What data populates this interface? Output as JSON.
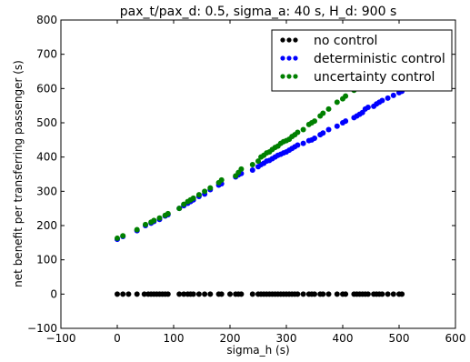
{
  "chart_data": {
    "type": "scatter",
    "title": "pax_t/pax_d: 0.5, sigma_a: 40 s, H_d: 900 s",
    "xlabel": "sigma_h (s)",
    "ylabel": "net benefit per transferring passenger (s)",
    "xlim": [
      -100,
      600
    ],
    "ylim": [
      -100,
      800
    ],
    "x_ticks": [
      -100,
      0,
      100,
      200,
      300,
      400,
      500,
      600
    ],
    "y_ticks": [
      -100,
      0,
      100,
      200,
      300,
      400,
      500,
      600,
      700,
      800
    ],
    "x_tick_labels": [
      "−100",
      "0",
      "100",
      "200",
      "300",
      "400",
      "500",
      "600"
    ],
    "y_tick_labels": [
      "−100",
      "0",
      "100",
      "200",
      "300",
      "400",
      "500",
      "600",
      "700",
      "800"
    ],
    "grid": false,
    "legend_position": "top-right",
    "series": [
      {
        "name": "no control",
        "color": "#000000",
        "points": [
          [
            0,
            0
          ],
          [
            10,
            0
          ],
          [
            20,
            0
          ],
          [
            35,
            0
          ],
          [
            48,
            0
          ],
          [
            55,
            0
          ],
          [
            60,
            0
          ],
          [
            65,
            0
          ],
          [
            70,
            0
          ],
          [
            75,
            0
          ],
          [
            80,
            0
          ],
          [
            85,
            0
          ],
          [
            90,
            0
          ],
          [
            110,
            0
          ],
          [
            118,
            0
          ],
          [
            125,
            0
          ],
          [
            130,
            0
          ],
          [
            135,
            0
          ],
          [
            145,
            0
          ],
          [
            155,
            0
          ],
          [
            165,
            0
          ],
          [
            180,
            0
          ],
          [
            185,
            0
          ],
          [
            200,
            0
          ],
          [
            210,
            0
          ],
          [
            215,
            0
          ],
          [
            220,
            0
          ],
          [
            240,
            0
          ],
          [
            250,
            0
          ],
          [
            255,
            0
          ],
          [
            260,
            0
          ],
          [
            265,
            0
          ],
          [
            270,
            0
          ],
          [
            275,
            0
          ],
          [
            280,
            0
          ],
          [
            285,
            0
          ],
          [
            290,
            0
          ],
          [
            295,
            0
          ],
          [
            300,
            0
          ],
          [
            305,
            0
          ],
          [
            310,
            0
          ],
          [
            315,
            0
          ],
          [
            320,
            0
          ],
          [
            330,
            0
          ],
          [
            340,
            0
          ],
          [
            345,
            0
          ],
          [
            350,
            0
          ],
          [
            360,
            0
          ],
          [
            365,
            0
          ],
          [
            375,
            0
          ],
          [
            390,
            0
          ],
          [
            400,
            0
          ],
          [
            405,
            0
          ],
          [
            420,
            0
          ],
          [
            425,
            0
          ],
          [
            430,
            0
          ],
          [
            435,
            0
          ],
          [
            440,
            0
          ],
          [
            445,
            0
          ],
          [
            455,
            0
          ],
          [
            460,
            0
          ],
          [
            465,
            0
          ],
          [
            470,
            0
          ],
          [
            480,
            0
          ],
          [
            490,
            0
          ],
          [
            500,
            0
          ],
          [
            505,
            0
          ]
        ]
      },
      {
        "name": "deterministic control",
        "color": "#0000ff",
        "points": [
          [
            0,
            160
          ],
          [
            10,
            168
          ],
          [
            35,
            185
          ],
          [
            50,
            200
          ],
          [
            60,
            207
          ],
          [
            65,
            212
          ],
          [
            75,
            218
          ],
          [
            85,
            228
          ],
          [
            90,
            232
          ],
          [
            110,
            250
          ],
          [
            118,
            258
          ],
          [
            125,
            265
          ],
          [
            130,
            270
          ],
          [
            135,
            275
          ],
          [
            145,
            285
          ],
          [
            155,
            292
          ],
          [
            165,
            305
          ],
          [
            180,
            318
          ],
          [
            185,
            322
          ],
          [
            210,
            342
          ],
          [
            215,
            348
          ],
          [
            220,
            352
          ],
          [
            240,
            362
          ],
          [
            250,
            372
          ],
          [
            255,
            378
          ],
          [
            260,
            382
          ],
          [
            265,
            388
          ],
          [
            270,
            390
          ],
          [
            275,
            395
          ],
          [
            280,
            400
          ],
          [
            285,
            405
          ],
          [
            290,
            408
          ],
          [
            295,
            412
          ],
          [
            300,
            415
          ],
          [
            305,
            420
          ],
          [
            310,
            425
          ],
          [
            315,
            430
          ],
          [
            320,
            435
          ],
          [
            330,
            440
          ],
          [
            340,
            448
          ],
          [
            345,
            450
          ],
          [
            350,
            455
          ],
          [
            360,
            465
          ],
          [
            365,
            470
          ],
          [
            375,
            480
          ],
          [
            390,
            490
          ],
          [
            400,
            500
          ],
          [
            405,
            505
          ],
          [
            420,
            515
          ],
          [
            425,
            520
          ],
          [
            430,
            525
          ],
          [
            435,
            530
          ],
          [
            440,
            540
          ],
          [
            445,
            545
          ],
          [
            455,
            548
          ],
          [
            460,
            555
          ],
          [
            465,
            560
          ],
          [
            470,
            565
          ],
          [
            480,
            572
          ],
          [
            490,
            580
          ],
          [
            500,
            588
          ],
          [
            505,
            592
          ]
        ]
      },
      {
        "name": "uncertainty control",
        "color": "#008000",
        "points": [
          [
            0,
            163
          ],
          [
            10,
            170
          ],
          [
            35,
            188
          ],
          [
            50,
            203
          ],
          [
            60,
            210
          ],
          [
            65,
            215
          ],
          [
            75,
            222
          ],
          [
            85,
            230
          ],
          [
            90,
            235
          ],
          [
            110,
            250
          ],
          [
            118,
            262
          ],
          [
            125,
            270
          ],
          [
            130,
            275
          ],
          [
            135,
            280
          ],
          [
            145,
            290
          ],
          [
            155,
            300
          ],
          [
            165,
            310
          ],
          [
            180,
            325
          ],
          [
            185,
            333
          ],
          [
            210,
            345
          ],
          [
            215,
            355
          ],
          [
            220,
            365
          ],
          [
            240,
            378
          ],
          [
            250,
            388
          ],
          [
            255,
            400
          ],
          [
            260,
            405
          ],
          [
            265,
            412
          ],
          [
            270,
            415
          ],
          [
            275,
            422
          ],
          [
            280,
            428
          ],
          [
            285,
            432
          ],
          [
            290,
            440
          ],
          [
            295,
            445
          ],
          [
            300,
            448
          ],
          [
            305,
            452
          ],
          [
            310,
            460
          ],
          [
            315,
            465
          ],
          [
            320,
            472
          ],
          [
            330,
            480
          ],
          [
            340,
            495
          ],
          [
            345,
            500
          ],
          [
            350,
            505
          ],
          [
            360,
            520
          ],
          [
            365,
            528
          ],
          [
            375,
            540
          ],
          [
            390,
            560
          ],
          [
            400,
            570
          ],
          [
            405,
            578
          ],
          [
            420,
            595
          ],
          [
            425,
            600
          ],
          [
            430,
            605
          ],
          [
            435,
            612
          ],
          [
            440,
            618
          ],
          [
            445,
            625
          ],
          [
            455,
            632
          ],
          [
            460,
            640
          ],
          [
            465,
            648
          ],
          [
            470,
            652
          ],
          [
            480,
            665
          ],
          [
            490,
            672
          ],
          [
            500,
            685
          ],
          [
            505,
            690
          ]
        ]
      }
    ]
  }
}
